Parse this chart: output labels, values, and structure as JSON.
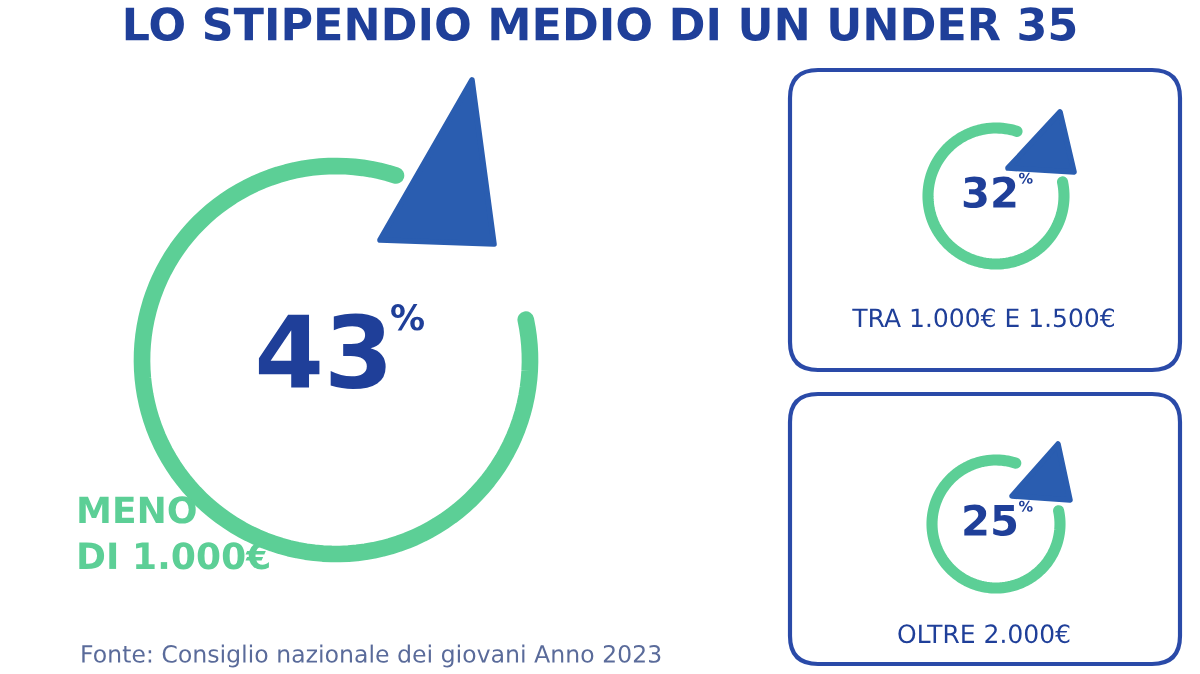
{
  "chart_data": {
    "type": "other",
    "title": "LO STIPENDIO MEDIO DI UN UNDER 35",
    "categories": [
      "MENO DI 1.000€",
      "TRA 1.000€ E 1.500€",
      "OLTRE 2.000€"
    ],
    "values": [
      43,
      32,
      25
    ],
    "value_labels": [
      "43%",
      "32%",
      "25%"
    ],
    "colors": [
      "#5ccf96",
      "#5ccf96",
      "#5ccf96"
    ],
    "annotations": [
      "Fonte: Consiglio nazionale dei giovani Anno 2023"
    ]
  }
}
